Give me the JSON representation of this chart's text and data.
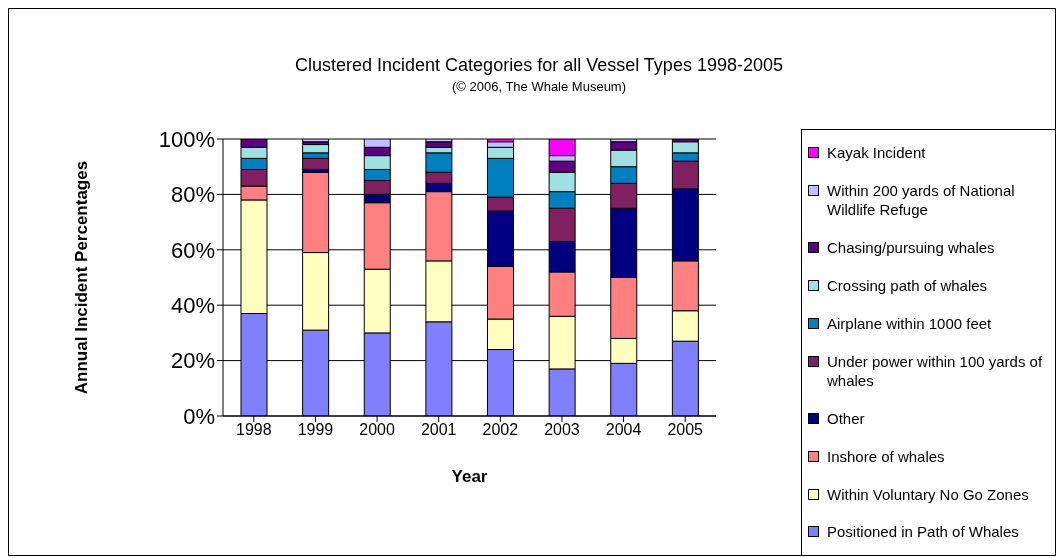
{
  "chart_data": {
    "type": "bar",
    "stacked": true,
    "title": "Clustered Incident Categories for all Vessel Types 1998-2005",
    "subtitle": "(© 2006, The Whale Museum)",
    "xlabel": "Year",
    "ylabel": "Annual Incident Percentages",
    "categories": [
      "1998",
      "1999",
      "2000",
      "2001",
      "2002",
      "2003",
      "2004",
      "2005"
    ],
    "series": [
      {
        "name": "Positioned in Path of Whales",
        "color": "#8080ff",
        "values": [
          37,
          31,
          30,
          34,
          24,
          17,
          19,
          27
        ]
      },
      {
        "name": "Within Voluntary No Go Zones",
        "color": "#ffffc0",
        "values": [
          41,
          28,
          23,
          22,
          11,
          19,
          9,
          11
        ]
      },
      {
        "name": "Inshore of whales",
        "color": "#ff8080",
        "values": [
          5,
          29,
          24,
          25,
          19,
          16,
          22,
          18
        ]
      },
      {
        "name": "Other",
        "color": "#000080",
        "values": [
          0,
          1,
          3,
          3,
          20,
          11,
          25,
          26
        ]
      },
      {
        "name": "Under power within 100 yards of whales",
        "color": "#802060",
        "values": [
          6,
          4,
          5,
          4,
          5,
          12,
          9,
          10
        ]
      },
      {
        "name": "Airplane within 1000 feet",
        "color": "#0080c0",
        "values": [
          4,
          2,
          4,
          7,
          14,
          6,
          6,
          3
        ]
      },
      {
        "name": "Crossing path of whales",
        "color": "#a0e0e0",
        "values": [
          4,
          3,
          5,
          2,
          4,
          7,
          6,
          4
        ]
      },
      {
        "name": "Chasing/pursuing whales",
        "color": "#600080",
        "values": [
          3,
          1,
          3,
          2,
          0,
          4,
          3,
          1
        ]
      },
      {
        "name": "Within 200 yards of National Wildlife Refuge",
        "color": "#c0c0ff",
        "values": [
          0,
          1,
          3,
          1,
          2,
          2,
          1,
          0
        ]
      },
      {
        "name": "Kayak Incident",
        "color": "#ff00ff",
        "values": [
          0,
          0,
          0,
          0,
          1,
          6,
          0,
          0
        ]
      }
    ],
    "ylim": [
      0,
      100
    ],
    "yticks": [
      {
        "value": 0,
        "label": "0%"
      },
      {
        "value": 20,
        "label": "20%"
      },
      {
        "value": 40,
        "label": "40%"
      },
      {
        "value": 60,
        "label": "60%"
      },
      {
        "value": 80,
        "label": "80%"
      },
      {
        "value": 100,
        "label": "100%"
      }
    ],
    "grid": "y",
    "legend": "right"
  }
}
